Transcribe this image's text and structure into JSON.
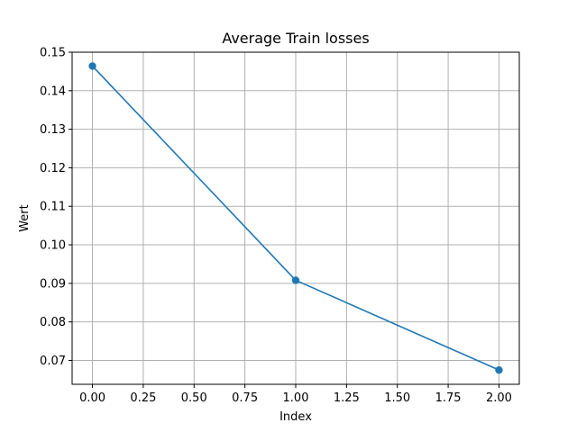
{
  "chart_data": {
    "type": "line",
    "title": "Average Train losses",
    "xlabel": "Index",
    "ylabel": "Wert",
    "xlim": [
      -0.1,
      2.1
    ],
    "ylim": [
      0.0638,
      0.15
    ],
    "x_ticks": [
      0.0,
      0.25,
      0.5,
      0.75,
      1.0,
      1.25,
      1.5,
      1.75,
      2.0
    ],
    "x_tick_labels": [
      "0.00",
      "0.25",
      "0.50",
      "0.75",
      "1.00",
      "1.25",
      "1.50",
      "1.75",
      "2.00"
    ],
    "y_ticks": [
      0.07,
      0.08,
      0.09,
      0.1,
      0.11,
      0.12,
      0.13,
      0.14,
      0.15
    ],
    "y_tick_labels": [
      "0.07",
      "0.08",
      "0.09",
      "0.10",
      "0.11",
      "0.12",
      "0.13",
      "0.14",
      "0.15"
    ],
    "grid": true,
    "series": [
      {
        "color": "#1f77b4",
        "marker": "circle",
        "x": [
          0,
          1,
          2
        ],
        "y": [
          0.1464,
          0.0908,
          0.0675
        ]
      }
    ]
  }
}
